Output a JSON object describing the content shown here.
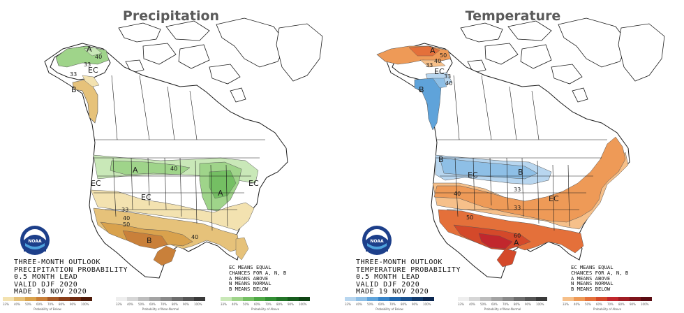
{
  "panels": [
    {
      "title": "Precipitation",
      "outlook_lines": [
        "THREE-MONTH OUTLOOK",
        "PRECIPITATION PROBABILITY",
        "0.5 MONTH LEAD",
        "VALID DJF 2020",
        "MADE 19 NOV 2020"
      ],
      "map_labels": {
        "alaska_a": "A",
        "alaska_40": "40",
        "alaska_33a": "33",
        "alaska_33b": "33",
        "alaska_ec": "EC",
        "alaska_b": "B",
        "north_a": "A",
        "north_40": "40",
        "east_a": "A",
        "mid_ec_w": "EC",
        "mid_ec_c": "EC",
        "mid_ec_e": "EC",
        "south_33": "33",
        "south_40": "40",
        "south_50": "50",
        "south_b": "B",
        "east_40": "40"
      },
      "colorbars": [
        {
          "colors": [
            "#f3e2b0",
            "#e6c27a",
            "#d9a24d",
            "#c9803a",
            "#a65a28",
            "#8a3f1a",
            "#6e2a10",
            "#4e1a08"
          ],
          "ticks": [
            "33%",
            "40%",
            "50%",
            "60%",
            "70%",
            "80%",
            "90%",
            "100%"
          ],
          "caption": "Probability of Below"
        },
        {
          "colors": [
            "#eeeeee",
            "#d6d6d6",
            "#bdbdbd",
            "#a3a3a3",
            "#8a8a8a",
            "#6e6e6e",
            "#555555",
            "#3a3a3a"
          ],
          "ticks": [
            "33%",
            "40%",
            "50%",
            "60%",
            "70%",
            "80%",
            "90%",
            "100%"
          ],
          "caption": "Probability of Near-Normal"
        },
        {
          "colors": [
            "#c9e8b8",
            "#9fd48a",
            "#74bf63",
            "#4ea845",
            "#328f34",
            "#237528",
            "#175c1d",
            "#0e4413"
          ],
          "ticks": [
            "33%",
            "40%",
            "50%",
            "60%",
            "70%",
            "80%",
            "90%",
            "100%"
          ],
          "caption": "Probability of Above"
        }
      ],
      "legend_lines": [
        "EC MEANS EQUAL",
        "CHANCES FOR A, N, B",
        "A MEANS ABOVE",
        "N MEANS NORMAL",
        "B MEANS BELOW"
      ]
    },
    {
      "title": "Temperature",
      "outlook_lines": [
        "THREE-MONTH OUTLOOK",
        "TEMPERATURE PROBABILITY",
        "0.5 MONTH LEAD",
        "VALID DJF 2020",
        "MADE 19 NOV 2020"
      ],
      "map_labels": {
        "alaska_a": "A",
        "alaska_50": "50",
        "alaska_40": "40",
        "alaska_33": "33",
        "alaska_ec": "EC",
        "alaska_b": "B",
        "alaska_33b": "33",
        "alaska_40b": "40",
        "west_b": "B",
        "north_b": "B",
        "north_33": "33",
        "mid_ec_w": "EC",
        "mid_ec_e": "EC",
        "south_40": "40",
        "south_50": "50",
        "south_60": "60",
        "south_a": "A",
        "south_33": "33"
      },
      "colorbars": [
        {
          "colors": [
            "#b8d6ef",
            "#8ebfe6",
            "#5fa3da",
            "#3783c8",
            "#2166ac",
            "#1a4f8c",
            "#123a6b",
            "#0a2650"
          ],
          "ticks": [
            "33%",
            "40%",
            "50%",
            "60%",
            "70%",
            "80%",
            "90%",
            "100%"
          ],
          "caption": "Probability of Below"
        },
        {
          "colors": [
            "#eeeeee",
            "#d6d6d6",
            "#bdbdbd",
            "#a3a3a3",
            "#8a8a8a",
            "#6e6e6e",
            "#555555",
            "#3a3a3a"
          ],
          "ticks": [
            "33%",
            "40%",
            "50%",
            "60%",
            "70%",
            "80%",
            "90%",
            "100%"
          ],
          "caption": "Probability of Near-Normal"
        },
        {
          "colors": [
            "#f6c08a",
            "#ee9a57",
            "#e4703a",
            "#d4492a",
            "#c1272d",
            "#a01d24",
            "#7d141b",
            "#5a0c12"
          ],
          "ticks": [
            "33%",
            "40%",
            "50%",
            "60%",
            "70%",
            "80%",
            "90%",
            "100%"
          ],
          "caption": "Probability of Above"
        }
      ],
      "legend_lines": [
        "EC MEANS EQUAL",
        "CHANCES FOR A, N, B",
        "A MEANS ABOVE",
        "N MEANS NORMAL",
        "B MEANS BELOW"
      ]
    }
  ],
  "logo": {
    "name": "NOAA logo",
    "text": "NOAA"
  },
  "colors": {
    "line": "#1a1a1a",
    "title": "#5a5a5a"
  }
}
